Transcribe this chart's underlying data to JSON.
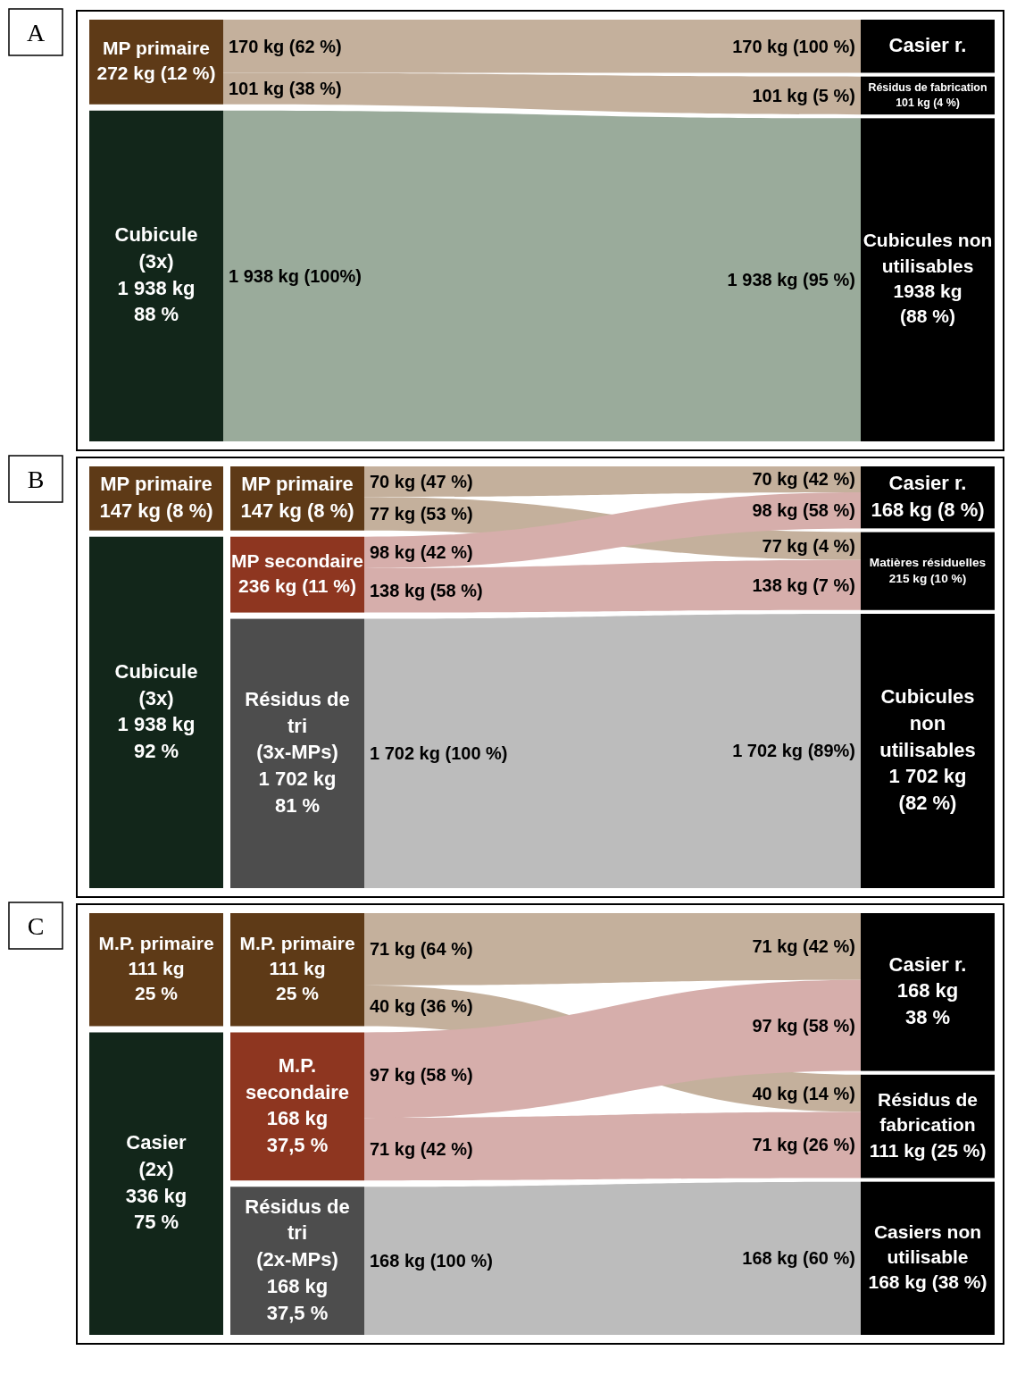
{
  "chart_data": [
    {
      "type": "other",
      "title": "A",
      "categories": [
        "MP primaire\n272 kg (12 %)",
        "Cubicule\n(3x)\n1 938 kg\n88 %",
        "Casier r.",
        "Résidus de fabrication\n101 kg (4 %)",
        "Cubicules non\nutilisables\n1938 kg\n(88 %)"
      ],
      "colors": [
        "#5e3a17",
        "#12261a",
        "#000000",
        "#000000",
        "#000000"
      ],
      "series": [
        {
          "values": [
            170,
            null,
            170,
            null,
            null
          ],
          "value_labels": [
            "170 kg (62 %)",
            null,
            "170 kg (100 %)",
            null,
            null
          ],
          "color": "#c4b09c"
        },
        {
          "values": [
            101,
            null,
            null,
            101,
            null
          ],
          "value_labels": [
            "101 kg (38 %)",
            null,
            null,
            "101 kg (5 %)",
            null
          ],
          "color": "#c4b09c"
        },
        {
          "values": [
            null,
            1938,
            null,
            null,
            1938
          ],
          "value_labels": [
            null,
            "1 938 kg (100%)",
            null,
            null,
            "1 938 kg (95 %)"
          ],
          "color": "#9aab9b"
        }
      ]
    },
    {
      "type": "other",
      "title": "B",
      "categories": [
        "MP primaire\n147 kg (8 %)",
        "Cubicule\n(3x)\n1 938 kg\n92 %",
        "MP primaire\n147 kg (8 %)",
        "MP secondaire\n236 kg (11 %)",
        "Résidus de\ntri\n(3x-MPs)\n1 702 kg\n81 %",
        "Casier r.\n168 kg (8 %)",
        "Matières résiduelles\n215 kg (10 %)",
        "Cubicules\nnon\nutilisables\n1 702 kg\n(82 %)"
      ],
      "colors": [
        "#5e3a17",
        "#12261a",
        "#5e3a17",
        "#8e3620",
        "#4d4d4d",
        "#000000",
        "#000000",
        "#000000"
      ],
      "series": [
        {
          "values": [
            null,
            null,
            70,
            null,
            null,
            70,
            null,
            null
          ],
          "value_labels": [
            null,
            null,
            "70 kg (47 %)",
            null,
            null,
            "70 kg (42 %)",
            null,
            null
          ],
          "color": "#c4b09c"
        },
        {
          "values": [
            null,
            null,
            77,
            null,
            null,
            null,
            77,
            null
          ],
          "value_labels": [
            null,
            null,
            "77 kg (53 %)",
            null,
            null,
            null,
            "77 kg (4 %)",
            null
          ],
          "color": "#c4b09c"
        },
        {
          "values": [
            null,
            null,
            null,
            98,
            null,
            98,
            null,
            null
          ],
          "value_labels": [
            null,
            null,
            null,
            "98 kg (42 %)",
            null,
            "98 kg (58 %)",
            null,
            null
          ],
          "color": "#d6aeab"
        },
        {
          "values": [
            null,
            null,
            null,
            138,
            null,
            null,
            138,
            null
          ],
          "value_labels": [
            null,
            null,
            null,
            "138 kg (58 %)",
            null,
            null,
            "138 kg (7 %)",
            null
          ],
          "color": "#d6aeab"
        },
        {
          "values": [
            null,
            null,
            null,
            null,
            1702,
            null,
            null,
            1702
          ],
          "value_labels": [
            null,
            null,
            null,
            null,
            "1 702 kg (100 %)",
            null,
            null,
            "1 702 kg (89%)"
          ],
          "color": "#bcbcbc"
        }
      ]
    },
    {
      "type": "other",
      "title": "C",
      "categories": [
        "M.P. primaire\n111 kg\n25 %",
        "Casier\n(2x)\n336 kg\n75 %",
        "M.P. primaire\n111 kg\n25 %",
        "M.P.\nsecondaire\n168 kg\n37,5 %",
        "Résidus de\ntri\n(2x-MPs)\n168 kg\n37,5 %",
        "Casier r.\n168 kg\n38 %",
        "Résidus de\nfabrication\n111 kg (25 %)",
        "Casiers non\nutilisable\n168 kg (38 %)"
      ],
      "colors": [
        "#5e3a17",
        "#12261a",
        "#5e3a17",
        "#8e3620",
        "#4d4d4d",
        "#000000",
        "#000000",
        "#000000"
      ],
      "series": [
        {
          "values": [
            null,
            null,
            71,
            null,
            null,
            71,
            null,
            null
          ],
          "value_labels": [
            null,
            null,
            "71 kg (64 %)",
            null,
            null,
            "71 kg (42 %)",
            null,
            null
          ],
          "color": "#c4b09c"
        },
        {
          "values": [
            null,
            null,
            40,
            null,
            null,
            null,
            40,
            null
          ],
          "value_labels": [
            null,
            null,
            "40 kg (36 %)",
            null,
            null,
            null,
            "40 kg (14 %)",
            null
          ],
          "color": "#c4b09c"
        },
        {
          "values": [
            null,
            null,
            null,
            97,
            null,
            97,
            null,
            null
          ],
          "value_labels": [
            null,
            null,
            null,
            "97 kg (58 %)",
            null,
            "97 kg (58 %)",
            null,
            null
          ],
          "color": "#d6aeab"
        },
        {
          "values": [
            null,
            null,
            null,
            71,
            null,
            null,
            71,
            null
          ],
          "value_labels": [
            null,
            null,
            null,
            "71 kg (42 %)",
            null,
            null,
            "71 kg (26 %)",
            null
          ],
          "color": "#d6aeab"
        },
        {
          "values": [
            null,
            null,
            null,
            null,
            168,
            null,
            null,
            168
          ],
          "value_labels": [
            null,
            null,
            null,
            null,
            "168 kg (100 %)",
            null,
            null,
            "168 kg (60 %)"
          ],
          "color": "#bcbcbc"
        }
      ]
    }
  ]
}
